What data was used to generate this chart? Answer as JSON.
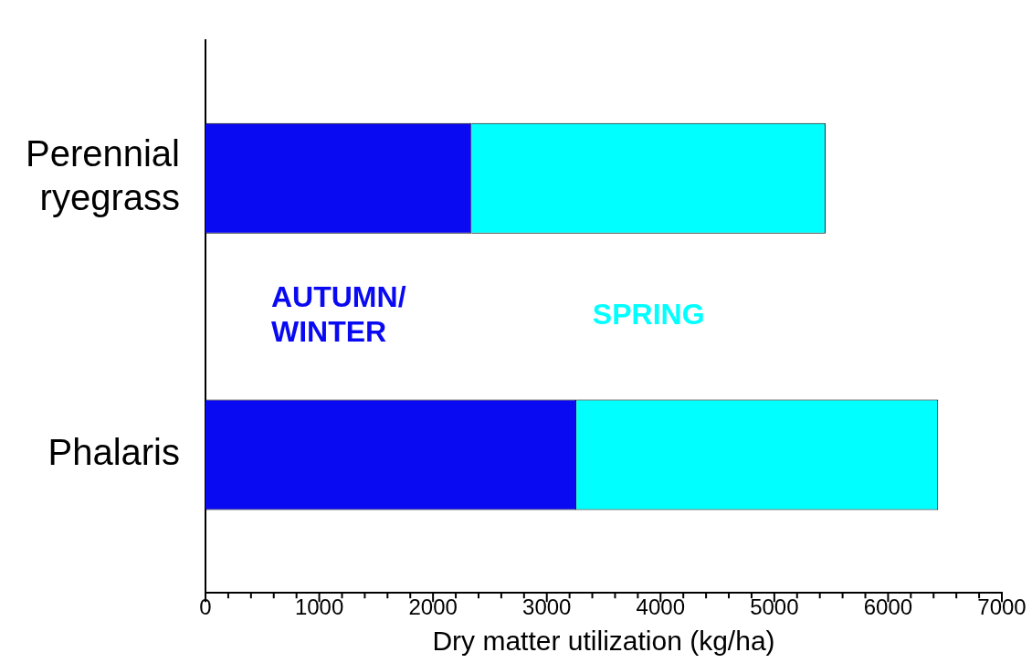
{
  "chart_data": {
    "type": "bar",
    "orientation": "horizontal",
    "stacked": true,
    "xlabel": "Dry matter utilization (kg/ha)",
    "categories": [
      "Perennial ryegrass",
      "Phalaris"
    ],
    "series": [
      {
        "name": "AUTUMN/WINTER",
        "color": "#0a0af2",
        "values": [
          2340,
          3260
        ]
      },
      {
        "name": "SPRING",
        "color": "#00ffff",
        "values": [
          3110,
          3180
        ]
      }
    ],
    "xlim": [
      0,
      7000
    ],
    "xticks": [
      0,
      {
        "value": 200,
        "label": null
      },
      {
        "value": 400,
        "label": null
      },
      {
        "value": 600,
        "label": null
      },
      {
        "value": 800,
        "label": null
      },
      1000,
      {
        "value": 1200,
        "label": null
      },
      {
        "value": 1400,
        "label": null
      },
      {
        "value": 1600,
        "label": null
      },
      {
        "value": 1800,
        "label": null
      },
      2000,
      {
        "value": 2200,
        "label": null
      },
      {
        "value": 2400,
        "label": null
      },
      {
        "value": 2600,
        "label": null
      },
      {
        "value": 2800,
        "label": null
      },
      3000,
      {
        "value": 3200,
        "label": null
      },
      {
        "value": 3400,
        "label": null
      },
      {
        "value": 3600,
        "label": null
      },
      {
        "value": 3800,
        "label": null
      },
      4000,
      {
        "value": 4200,
        "label": null
      },
      {
        "value": 4400,
        "label": null
      },
      {
        "value": 4600,
        "label": null
      },
      {
        "value": 4800,
        "label": null
      },
      5000,
      {
        "value": 5200,
        "label": null
      },
      {
        "value": 5400,
        "label": null
      },
      {
        "value": 5600,
        "label": null
      },
      {
        "value": 5800,
        "label": null
      },
      6000,
      {
        "value": 6200,
        "label": null
      },
      {
        "value": 6400,
        "label": null
      },
      {
        "value": 6600,
        "label": null
      },
      {
        "value": 6800,
        "label": null
      },
      7000
    ],
    "grid": false,
    "legend": false
  }
}
